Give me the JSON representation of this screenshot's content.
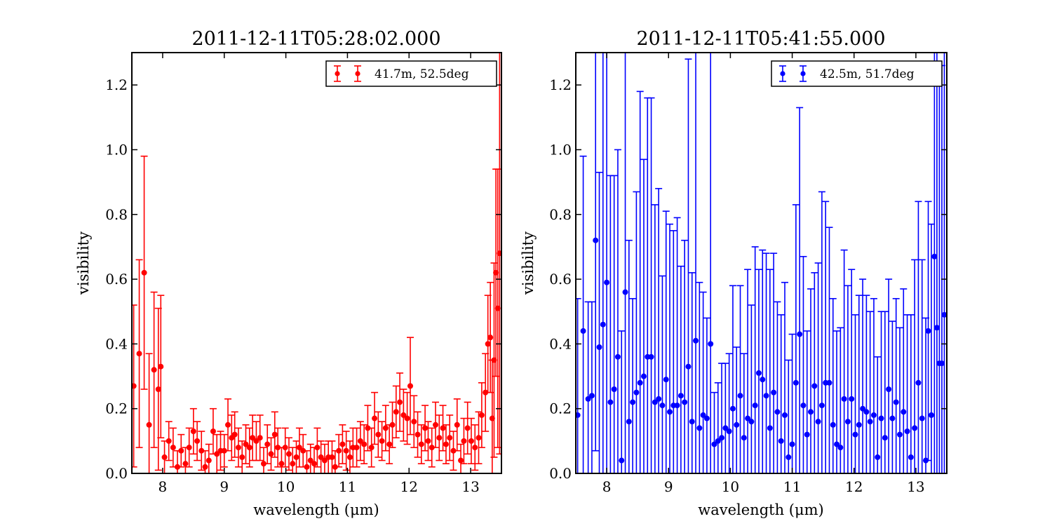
{
  "chart_data": [
    {
      "type": "scatter",
      "title": "2011-12-11T05:28:02.000",
      "xlabel": "wavelength (μm)",
      "ylabel": "visibility",
      "xlim": [
        7.5,
        13.5
      ],
      "ylim": [
        0.0,
        1.3
      ],
      "xticks": [
        "8",
        "9",
        "10",
        "11",
        "12",
        "13"
      ],
      "yticks": [
        "0.0",
        "0.2",
        "0.4",
        "0.6",
        "0.8",
        "1.0",
        "1.2"
      ],
      "grid": false,
      "legend_position": "top-right",
      "series": [
        {
          "name": "41.7m, 52.5deg",
          "color": "#ff0000",
          "marker": "circle",
          "error_bars": true,
          "points": [
            [
              7.53,
              0.27,
              0.25
            ],
            [
              7.62,
              0.37,
              0.29
            ],
            [
              7.7,
              0.62,
              0.36
            ],
            [
              7.78,
              0.15,
              0.22
            ],
            [
              7.86,
              0.32,
              0.24
            ],
            [
              7.93,
              0.26,
              0.25
            ],
            [
              7.97,
              0.33,
              0.22
            ],
            [
              8.03,
              0.05,
              0.05
            ],
            [
              8.1,
              0.1,
              0.06
            ],
            [
              8.17,
              0.08,
              0.06
            ],
            [
              8.24,
              0.02,
              0.05
            ],
            [
              8.3,
              0.07,
              0.05
            ],
            [
              8.37,
              0.03,
              0.05
            ],
            [
              8.43,
              0.08,
              0.06
            ],
            [
              8.5,
              0.13,
              0.07
            ],
            [
              8.56,
              0.1,
              0.06
            ],
            [
              8.63,
              0.07,
              0.06
            ],
            [
              8.69,
              0.02,
              0.05
            ],
            [
              8.75,
              0.04,
              0.05
            ],
            [
              8.82,
              0.13,
              0.07
            ],
            [
              8.88,
              0.06,
              0.06
            ],
            [
              8.94,
              0.07,
              0.06
            ],
            [
              9.0,
              0.07,
              0.05
            ],
            [
              9.06,
              0.15,
              0.08
            ],
            [
              9.12,
              0.11,
              0.07
            ],
            [
              9.17,
              0.12,
              0.07
            ],
            [
              9.23,
              0.08,
              0.06
            ],
            [
              9.29,
              0.05,
              0.05
            ],
            [
              9.35,
              0.09,
              0.06
            ],
            [
              9.41,
              0.08,
              0.06
            ],
            [
              9.46,
              0.11,
              0.07
            ],
            [
              9.52,
              0.1,
              0.06
            ],
            [
              9.58,
              0.11,
              0.07
            ],
            [
              9.64,
              0.03,
              0.05
            ],
            [
              9.7,
              0.09,
              0.06
            ],
            [
              9.76,
              0.06,
              0.05
            ],
            [
              9.82,
              0.12,
              0.07
            ],
            [
              9.87,
              0.08,
              0.06
            ],
            [
              9.93,
              0.03,
              0.05
            ],
            [
              9.99,
              0.08,
              0.06
            ],
            [
              10.05,
              0.06,
              0.05
            ],
            [
              10.11,
              0.03,
              0.05
            ],
            [
              10.17,
              0.05,
              0.05
            ],
            [
              10.22,
              0.08,
              0.06
            ],
            [
              10.28,
              0.07,
              0.05
            ],
            [
              10.34,
              0.02,
              0.05
            ],
            [
              10.4,
              0.04,
              0.05
            ],
            [
              10.46,
              0.03,
              0.05
            ],
            [
              10.51,
              0.08,
              0.06
            ],
            [
              10.57,
              0.05,
              0.05
            ],
            [
              10.63,
              0.04,
              0.05
            ],
            [
              10.69,
              0.05,
              0.05
            ],
            [
              10.75,
              0.05,
              0.05
            ],
            [
              10.8,
              0.02,
              0.05
            ],
            [
              10.86,
              0.07,
              0.05
            ],
            [
              10.92,
              0.09,
              0.06
            ],
            [
              10.98,
              0.07,
              0.06
            ],
            [
              11.04,
              0.05,
              0.05
            ],
            [
              11.09,
              0.08,
              0.06
            ],
            [
              11.15,
              0.08,
              0.06
            ],
            [
              11.21,
              0.1,
              0.06
            ],
            [
              11.27,
              0.09,
              0.06
            ],
            [
              11.33,
              0.14,
              0.07
            ],
            [
              11.39,
              0.08,
              0.06
            ],
            [
              11.44,
              0.17,
              0.08
            ],
            [
              11.5,
              0.12,
              0.07
            ],
            [
              11.56,
              0.1,
              0.06
            ],
            [
              11.62,
              0.14,
              0.07
            ],
            [
              11.68,
              0.09,
              0.06
            ],
            [
              11.73,
              0.15,
              0.07
            ],
            [
              11.79,
              0.19,
              0.08
            ],
            [
              11.85,
              0.22,
              0.09
            ],
            [
              11.91,
              0.18,
              0.08
            ],
            [
              11.97,
              0.17,
              0.08
            ],
            [
              12.02,
              0.27,
              0.15
            ],
            [
              12.08,
              0.16,
              0.08
            ],
            [
              12.14,
              0.12,
              0.07
            ],
            [
              12.2,
              0.09,
              0.06
            ],
            [
              12.26,
              0.14,
              0.07
            ],
            [
              12.31,
              0.1,
              0.06
            ],
            [
              12.37,
              0.08,
              0.06
            ],
            [
              12.43,
              0.15,
              0.07
            ],
            [
              12.49,
              0.11,
              0.07
            ],
            [
              12.55,
              0.14,
              0.07
            ],
            [
              12.6,
              0.09,
              0.06
            ],
            [
              12.66,
              0.11,
              0.07
            ],
            [
              12.72,
              0.07,
              0.06
            ],
            [
              12.78,
              0.15,
              0.08
            ],
            [
              12.84,
              0.04,
              0.05
            ],
            [
              12.89,
              0.1,
              0.07
            ],
            [
              12.95,
              0.14,
              0.08
            ],
            [
              13.01,
              0.1,
              0.07
            ],
            [
              13.07,
              0.08,
              0.07
            ],
            [
              13.13,
              0.11,
              0.08
            ],
            [
              13.18,
              0.18,
              0.1
            ],
            [
              13.24,
              0.25,
              0.12
            ],
            [
              13.28,
              0.4,
              0.15
            ],
            [
              13.32,
              0.42,
              0.17
            ],
            [
              13.35,
              0.17,
              0.18
            ],
            [
              13.38,
              0.35,
              0.3
            ],
            [
              13.41,
              0.62,
              0.32
            ],
            [
              13.44,
              0.51,
              0.43
            ],
            [
              13.47,
              0.68,
              0.62
            ]
          ]
        }
      ]
    },
    {
      "type": "scatter",
      "title": "2011-12-11T05:41:55.000",
      "xlabel": "wavelength (μm)",
      "ylabel": "visibility",
      "xlim": [
        7.5,
        13.5
      ],
      "ylim": [
        0.0,
        1.3
      ],
      "xticks": [
        "8",
        "9",
        "10",
        "11",
        "12",
        "13"
      ],
      "yticks": [
        "0.0",
        "0.2",
        "0.4",
        "0.6",
        "0.8",
        "1.0",
        "1.2"
      ],
      "grid": false,
      "legend_position": "top-right",
      "series": [
        {
          "name": "42.5m, 51.7deg",
          "color": "#0000ff",
          "marker": "circle",
          "error_bars": true,
          "points": [
            [
              7.53,
              0.18,
              0.36
            ],
            [
              7.62,
              0.44,
              0.54
            ],
            [
              7.7,
              0.23,
              0.3
            ],
            [
              7.76,
              0.24,
              0.29
            ],
            [
              7.82,
              0.72,
              0.65
            ],
            [
              7.88,
              0.39,
              0.54
            ],
            [
              7.94,
              0.46,
              0.9
            ],
            [
              8.0,
              0.59,
              0.77
            ],
            [
              8.06,
              0.22,
              0.7
            ],
            [
              8.12,
              0.26,
              0.66
            ],
            [
              8.18,
              0.36,
              0.64
            ],
            [
              8.24,
              0.04,
              0.4
            ],
            [
              8.3,
              0.56,
              0.9
            ],
            [
              8.36,
              0.16,
              0.56
            ],
            [
              8.42,
              0.22,
              0.32
            ],
            [
              8.48,
              0.25,
              0.62
            ],
            [
              8.54,
              0.28,
              0.9
            ],
            [
              8.6,
              0.3,
              0.67
            ],
            [
              8.66,
              0.36,
              0.8
            ],
            [
              8.72,
              0.36,
              0.8
            ],
            [
              8.78,
              0.22,
              0.61
            ],
            [
              8.84,
              0.23,
              0.65
            ],
            [
              8.9,
              0.21,
              0.4
            ],
            [
              8.96,
              0.29,
              0.52
            ],
            [
              9.02,
              0.19,
              0.58
            ],
            [
              9.08,
              0.21,
              0.54
            ],
            [
              9.14,
              0.21,
              0.58
            ],
            [
              9.2,
              0.24,
              0.4
            ],
            [
              9.26,
              0.22,
              0.5
            ],
            [
              9.32,
              0.33,
              0.95
            ],
            [
              9.38,
              0.16,
              0.46
            ],
            [
              9.44,
              0.41,
              0.9
            ],
            [
              9.5,
              0.14,
              0.45
            ],
            [
              9.56,
              0.18,
              0.38
            ],
            [
              9.62,
              0.17,
              0.31
            ],
            [
              9.68,
              0.4,
              0.9
            ],
            [
              9.74,
              0.09,
              0.16
            ],
            [
              9.8,
              0.1,
              0.18
            ],
            [
              9.86,
              0.11,
              0.23
            ],
            [
              9.92,
              0.14,
              0.2
            ],
            [
              9.98,
              0.13,
              0.24
            ],
            [
              10.04,
              0.2,
              0.38
            ],
            [
              10.1,
              0.15,
              0.24
            ],
            [
              10.16,
              0.24,
              0.34
            ],
            [
              10.22,
              0.11,
              0.26
            ],
            [
              10.28,
              0.17,
              0.46
            ],
            [
              10.34,
              0.16,
              0.36
            ],
            [
              10.4,
              0.21,
              0.49
            ],
            [
              10.46,
              0.31,
              0.32
            ],
            [
              10.52,
              0.29,
              0.4
            ],
            [
              10.58,
              0.24,
              0.44
            ],
            [
              10.64,
              0.14,
              0.49
            ],
            [
              10.7,
              0.25,
              0.43
            ],
            [
              10.76,
              0.19,
              0.34
            ],
            [
              10.82,
              0.1,
              0.39
            ],
            [
              10.88,
              0.18,
              0.41
            ],
            [
              10.94,
              0.05,
              0.3
            ],
            [
              11.0,
              0.09,
              0.34
            ],
            [
              11.06,
              0.28,
              0.55
            ],
            [
              11.12,
              0.43,
              0.7
            ],
            [
              11.18,
              0.21,
              0.46
            ],
            [
              11.24,
              0.12,
              0.32
            ],
            [
              11.3,
              0.19,
              0.38
            ],
            [
              11.36,
              0.27,
              0.35
            ],
            [
              11.42,
              0.16,
              0.49
            ],
            [
              11.48,
              0.21,
              0.66
            ],
            [
              11.54,
              0.28,
              0.56
            ],
            [
              11.6,
              0.28,
              0.48
            ],
            [
              11.66,
              0.15,
              0.39
            ],
            [
              11.72,
              0.09,
              0.35
            ],
            [
              11.78,
              0.08,
              0.37
            ],
            [
              11.84,
              0.23,
              0.46
            ],
            [
              11.9,
              0.16,
              0.42
            ],
            [
              11.96,
              0.23,
              0.4
            ],
            [
              12.02,
              0.12,
              0.37
            ],
            [
              12.08,
              0.15,
              0.4
            ],
            [
              12.14,
              0.2,
              0.4
            ],
            [
              12.2,
              0.19,
              0.36
            ],
            [
              12.26,
              0.16,
              0.34
            ],
            [
              12.32,
              0.18,
              0.36
            ],
            [
              12.38,
              0.05,
              0.31
            ],
            [
              12.44,
              0.17,
              0.33
            ],
            [
              12.5,
              0.11,
              0.39
            ],
            [
              12.56,
              0.26,
              0.34
            ],
            [
              12.62,
              0.17,
              0.3
            ],
            [
              12.68,
              0.22,
              0.32
            ],
            [
              12.74,
              0.12,
              0.33
            ],
            [
              12.8,
              0.19,
              0.38
            ],
            [
              12.86,
              0.13,
              0.36
            ],
            [
              12.92,
              0.05,
              0.44
            ],
            [
              12.98,
              0.14,
              0.52
            ],
            [
              13.04,
              0.28,
              0.56
            ],
            [
              13.1,
              0.17,
              0.49
            ],
            [
              13.16,
              0.04,
              0.44
            ],
            [
              13.2,
              0.44,
              0.4
            ],
            [
              13.25,
              0.18,
              0.59
            ],
            [
              13.3,
              0.67,
              0.85
            ],
            [
              13.34,
              0.45,
              0.9
            ],
            [
              13.38,
              0.34,
              0.92
            ],
            [
              13.42,
              0.34,
              0.92
            ],
            [
              13.46,
              0.49,
              0.92
            ]
          ]
        }
      ]
    }
  ]
}
